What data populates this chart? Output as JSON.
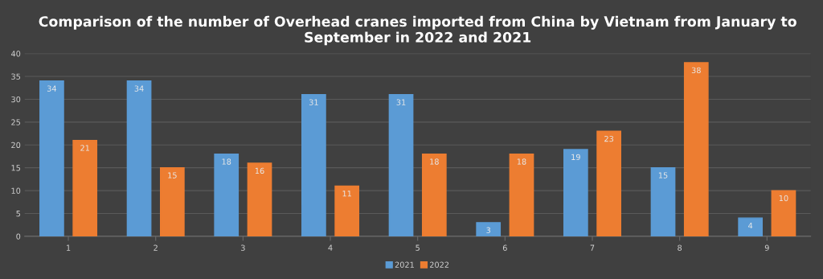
{
  "chart_data": {
    "type": "bar",
    "title": "Comparison of the number of Overhead cranes imported from China by Vietnam from January to September in 2022 and 2021",
    "categories": [
      "1",
      "2",
      "3",
      "4",
      "5",
      "6",
      "7",
      "8",
      "9"
    ],
    "series": [
      {
        "name": "2021",
        "color": "#5b9bd5",
        "values": [
          34,
          34,
          18,
          31,
          31,
          3,
          19,
          15,
          4
        ]
      },
      {
        "name": "2022",
        "color": "#ed7d31",
        "values": [
          21,
          15,
          16,
          11,
          18,
          18,
          23,
          38,
          10
        ]
      }
    ],
    "ylim": [
      0,
      40
    ],
    "yticks": [
      0,
      5,
      10,
      15,
      20,
      25,
      30,
      35,
      40
    ],
    "grid": "y",
    "legend": "bottom",
    "data_labels": true
  }
}
